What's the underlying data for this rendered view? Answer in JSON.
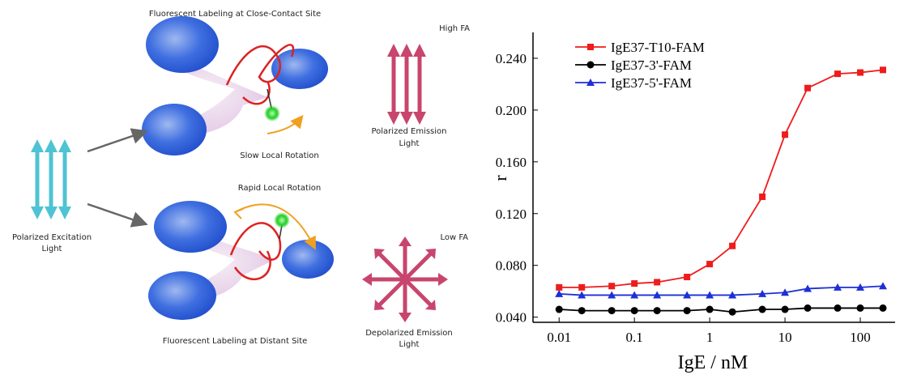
{
  "diagram": {
    "top_title": "Fluorescent Labeling at Close-Contact Site",
    "high_fa": "High FA",
    "polarized_emission": [
      "Polarized Emission",
      "Light"
    ],
    "slow_rotation": "Slow Local Rotation",
    "rapid_rotation": "Rapid Local Rotation",
    "excitation": [
      "Polarized Excitation",
      "Light"
    ],
    "low_fa": "Low FA",
    "bottom_title": "Fluorescent Labeling at Distant Site",
    "depolarized_emission": [
      "Depolarized Emission",
      "Light"
    ]
  },
  "chart_data": {
    "type": "line",
    "xlabel": "IgE / nM",
    "ylabel": "r",
    "x": [
      0.01,
      0.02,
      0.05,
      0.1,
      0.2,
      0.5,
      1,
      2,
      5,
      10,
      20,
      50,
      100,
      200
    ],
    "xscale": "log",
    "xlim": [
      0.0045,
      290
    ],
    "xticks": [
      0.01,
      0.1,
      1,
      10,
      100
    ],
    "ylim": [
      0.036,
      0.26
    ],
    "yticks": [
      {
        "value": 0.04,
        "label": "0.040"
      },
      {
        "value": 0.08,
        "label": "0.080"
      },
      {
        "value": 0.12,
        "label": "0.120"
      },
      {
        "value": 0.16,
        "label": "0.160"
      },
      {
        "value": 0.2,
        "label": "0.200"
      },
      {
        "value": 0.24,
        "label": "0.240"
      }
    ],
    "legend": "upper left",
    "series": [
      {
        "name": "IgE37-T10-FAM",
        "color": "#ee1c1c",
        "marker": "square",
        "values": [
          0.063,
          0.063,
          0.064,
          0.066,
          0.067,
          0.071,
          0.081,
          0.095,
          0.133,
          0.181,
          0.217,
          0.228,
          0.229,
          0.231
        ]
      },
      {
        "name": "IgE37-3'-FAM",
        "color": "#000000",
        "marker": "circle",
        "values": [
          0.046,
          0.045,
          0.045,
          0.045,
          0.045,
          0.045,
          0.046,
          0.044,
          0.046,
          0.046,
          0.047,
          0.047,
          0.047,
          0.047
        ]
      },
      {
        "name": "IgE37-5'-FAM",
        "color": "#1d2fd6",
        "marker": "triangle",
        "values": [
          0.058,
          0.057,
          0.057,
          0.057,
          0.057,
          0.057,
          0.057,
          0.057,
          0.058,
          0.059,
          0.062,
          0.063,
          0.063,
          0.064
        ]
      }
    ]
  }
}
